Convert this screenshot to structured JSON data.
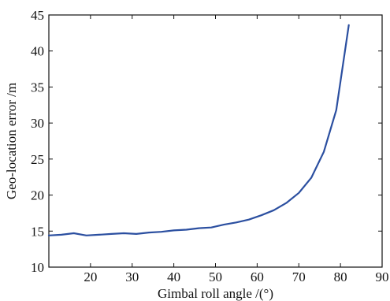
{
  "chart_data": {
    "type": "line",
    "title": "",
    "xlabel": "Gimbal roll angle /(°)",
    "ylabel": "Geo-location error /m",
    "xlim": [
      10,
      90
    ],
    "ylim": [
      10,
      45
    ],
    "xticks": [
      20,
      30,
      40,
      50,
      60,
      70,
      80,
      90
    ],
    "yticks": [
      10,
      15,
      20,
      25,
      30,
      35,
      40,
      45
    ],
    "grid": false,
    "series": [
      {
        "color": "#2b4fa0",
        "x": [
          10,
          13,
          16,
          19,
          22,
          25,
          28,
          31,
          34,
          37,
          40,
          43,
          46,
          49,
          52,
          55,
          58,
          61,
          64,
          67,
          70,
          73,
          76,
          79,
          82
        ],
        "y": [
          14.4,
          14.5,
          14.7,
          14.4,
          14.5,
          14.6,
          14.7,
          14.6,
          14.8,
          14.9,
          15.1,
          15.2,
          15.4,
          15.5,
          15.9,
          16.2,
          16.6,
          17.2,
          17.9,
          18.9,
          20.3,
          22.4,
          26.0,
          31.8,
          43.6
        ]
      }
    ]
  }
}
